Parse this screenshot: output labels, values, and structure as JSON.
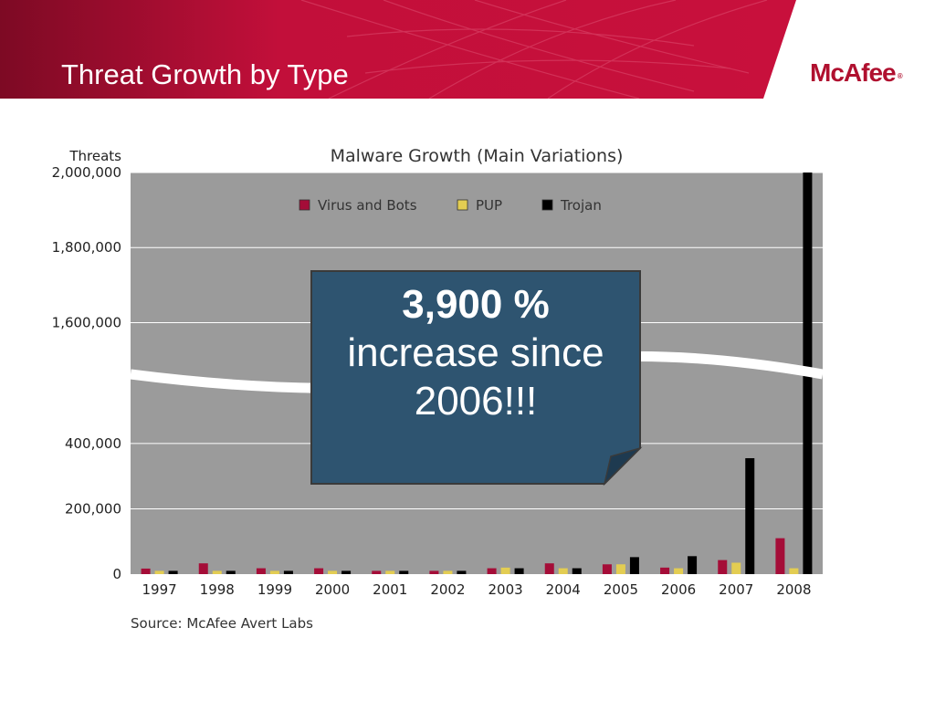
{
  "slide": {
    "title": "Threat Growth by Type",
    "brand": "McAfee",
    "brand_mark": "®",
    "header_color": "#c8103c",
    "source": "Source: McAfee Avert Labs"
  },
  "callout": {
    "headline": "3,900 %",
    "line1": "increase since",
    "line2": "2006!!!",
    "color": "#2e5470"
  },
  "chart_data": {
    "type": "bar",
    "title": "Malware Growth (Main Variations)",
    "ylabel": "Threats",
    "xlabel": "",
    "categories": [
      "1997",
      "1998",
      "1999",
      "2000",
      "2001",
      "2002",
      "2003",
      "2004",
      "2005",
      "2006",
      "2007",
      "2008"
    ],
    "series": [
      {
        "name": "Virus and Bots",
        "color": "#a50d38",
        "values": [
          17000,
          33000,
          18000,
          18000,
          10000,
          10000,
          18000,
          33000,
          30000,
          20000,
          43000,
          110000
        ]
      },
      {
        "name": "PUP",
        "color": "#e3cd52",
        "values": [
          10000,
          10000,
          10000,
          10000,
          10000,
          10000,
          20000,
          18000,
          30000,
          18000,
          35000,
          18000
        ]
      },
      {
        "name": "Trojan",
        "color": "#000000",
        "values": [
          10000,
          10000,
          10000,
          10000,
          10000,
          10000,
          18000,
          18000,
          52000,
          55000,
          355000,
          2000000
        ]
      }
    ],
    "ylim": [
      0,
      2000000
    ],
    "axis_break": [
      450000,
      1550000
    ],
    "yticks": [
      {
        "value": 0,
        "label": "0"
      },
      {
        "value": 200000,
        "label": "200,000"
      },
      {
        "value": 400000,
        "label": "400,000"
      },
      {
        "value": 1600000,
        "label": "1,600,000"
      },
      {
        "value": 1800000,
        "label": "1,800,000"
      },
      {
        "value": 2000000,
        "label": "2,000,000"
      }
    ],
    "legend_position": "top",
    "grid": true,
    "plot_background": "#9b9b9b"
  }
}
